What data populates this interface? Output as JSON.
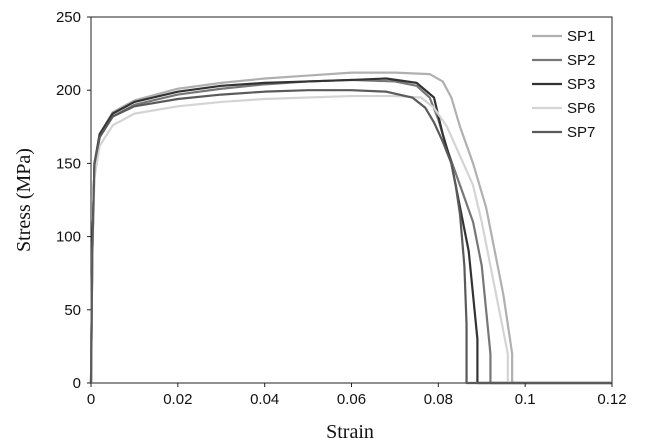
{
  "chart_data": {
    "type": "line",
    "title": "",
    "xlabel": "Strain",
    "ylabel": "Stress (MPa)",
    "xlim": [
      0,
      0.12
    ],
    "ylim": [
      0,
      250
    ],
    "xticks": [
      "0",
      "0.02",
      "0.04",
      "0.06",
      "0.08",
      "0.1",
      "0.12"
    ],
    "yticks": [
      "0",
      "50",
      "100",
      "150",
      "200",
      "250"
    ],
    "grid": false,
    "legend_position": "top-right",
    "series": [
      {
        "name": "SP1",
        "color": "#b0b0b0",
        "points": [
          [
            0,
            0
          ],
          [
            0.0003,
            90
          ],
          [
            0.0008,
            150
          ],
          [
            0.002,
            170
          ],
          [
            0.005,
            185
          ],
          [
            0.01,
            193
          ],
          [
            0.02,
            201
          ],
          [
            0.03,
            205
          ],
          [
            0.04,
            208
          ],
          [
            0.05,
            210
          ],
          [
            0.06,
            212
          ],
          [
            0.07,
            212
          ],
          [
            0.078,
            211
          ],
          [
            0.081,
            206
          ],
          [
            0.083,
            195
          ],
          [
            0.085,
            175
          ],
          [
            0.088,
            150
          ],
          [
            0.091,
            120
          ],
          [
            0.093,
            90
          ],
          [
            0.095,
            60
          ],
          [
            0.097,
            20
          ],
          [
            0.097,
            0
          ],
          [
            0.12,
            0
          ]
        ]
      },
      {
        "name": "SP2",
        "color": "#777777",
        "points": [
          [
            0,
            0
          ],
          [
            0.0003,
            90
          ],
          [
            0.0008,
            148
          ],
          [
            0.002,
            168
          ],
          [
            0.005,
            182
          ],
          [
            0.01,
            190
          ],
          [
            0.02,
            197
          ],
          [
            0.03,
            201
          ],
          [
            0.04,
            204
          ],
          [
            0.05,
            206
          ],
          [
            0.06,
            207
          ],
          [
            0.07,
            206
          ],
          [
            0.075,
            203
          ],
          [
            0.078,
            195
          ],
          [
            0.08,
            180
          ],
          [
            0.082,
            160
          ],
          [
            0.085,
            135
          ],
          [
            0.088,
            110
          ],
          [
            0.09,
            80
          ],
          [
            0.091,
            50
          ],
          [
            0.092,
            20
          ],
          [
            0.092,
            0
          ],
          [
            0.12,
            0
          ]
        ]
      },
      {
        "name": "SP3",
        "color": "#333333",
        "points": [
          [
            0,
            0
          ],
          [
            0.0003,
            90
          ],
          [
            0.0008,
            150
          ],
          [
            0.002,
            170
          ],
          [
            0.005,
            184
          ],
          [
            0.01,
            192
          ],
          [
            0.02,
            199
          ],
          [
            0.03,
            203
          ],
          [
            0.04,
            205
          ],
          [
            0.05,
            206
          ],
          [
            0.06,
            207
          ],
          [
            0.068,
            208
          ],
          [
            0.075,
            205
          ],
          [
            0.079,
            195
          ],
          [
            0.081,
            170
          ],
          [
            0.083,
            150
          ],
          [
            0.085,
            120
          ],
          [
            0.087,
            90
          ],
          [
            0.088,
            60
          ],
          [
            0.089,
            30
          ],
          [
            0.089,
            0
          ],
          [
            0.12,
            0
          ]
        ]
      },
      {
        "name": "SP6",
        "color": "#d4d4d4",
        "points": [
          [
            0,
            0
          ],
          [
            0.0003,
            85
          ],
          [
            0.0008,
            140
          ],
          [
            0.002,
            162
          ],
          [
            0.005,
            176
          ],
          [
            0.01,
            184
          ],
          [
            0.02,
            189
          ],
          [
            0.03,
            192
          ],
          [
            0.04,
            194
          ],
          [
            0.05,
            195
          ],
          [
            0.06,
            196
          ],
          [
            0.07,
            196
          ],
          [
            0.076,
            195
          ],
          [
            0.079,
            188
          ],
          [
            0.082,
            175
          ],
          [
            0.085,
            155
          ],
          [
            0.088,
            135
          ],
          [
            0.09,
            110
          ],
          [
            0.092,
            80
          ],
          [
            0.094,
            50
          ],
          [
            0.096,
            20
          ],
          [
            0.096,
            0
          ],
          [
            0.12,
            0
          ]
        ]
      },
      {
        "name": "SP7",
        "color": "#5a5a5a",
        "points": [
          [
            0,
            0
          ],
          [
            0.0003,
            90
          ],
          [
            0.0008,
            150
          ],
          [
            0.002,
            168
          ],
          [
            0.005,
            182
          ],
          [
            0.01,
            189
          ],
          [
            0.02,
            194
          ],
          [
            0.03,
            197
          ],
          [
            0.04,
            199
          ],
          [
            0.05,
            200
          ],
          [
            0.06,
            200
          ],
          [
            0.068,
            199
          ],
          [
            0.074,
            195
          ],
          [
            0.077,
            188
          ],
          [
            0.079,
            178
          ],
          [
            0.081,
            165
          ],
          [
            0.083,
            150
          ],
          [
            0.084,
            135
          ],
          [
            0.085,
            115
          ],
          [
            0.086,
            80
          ],
          [
            0.0865,
            40
          ],
          [
            0.0865,
            0
          ],
          [
            0.12,
            0
          ]
        ]
      }
    ]
  }
}
